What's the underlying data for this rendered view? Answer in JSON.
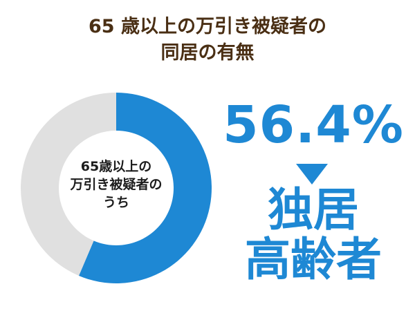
{
  "header": {
    "title_line1": "65 歳以上の万引き被疑者の",
    "title_line2": "同居の有無"
  },
  "donut": {
    "center_line1": "65歳以上の",
    "center_line2": "万引き被疑者の",
    "center_line3": "うち"
  },
  "callout": {
    "percent_text": "56.4%",
    "result_line1": "独居",
    "result_line2": "高齢者"
  },
  "colors": {
    "title": "#4a2f14",
    "highlight": "#1e88d4",
    "remainder": "#e0e0e0"
  },
  "chart_data": {
    "type": "pie",
    "title": "65 歳以上の万引き被疑者の同居の有無",
    "categories": [
      "独居高齢者",
      ""
    ],
    "values": [
      56.4,
      43.6
    ],
    "unit": "%",
    "grid": false,
    "legend": "none"
  }
}
